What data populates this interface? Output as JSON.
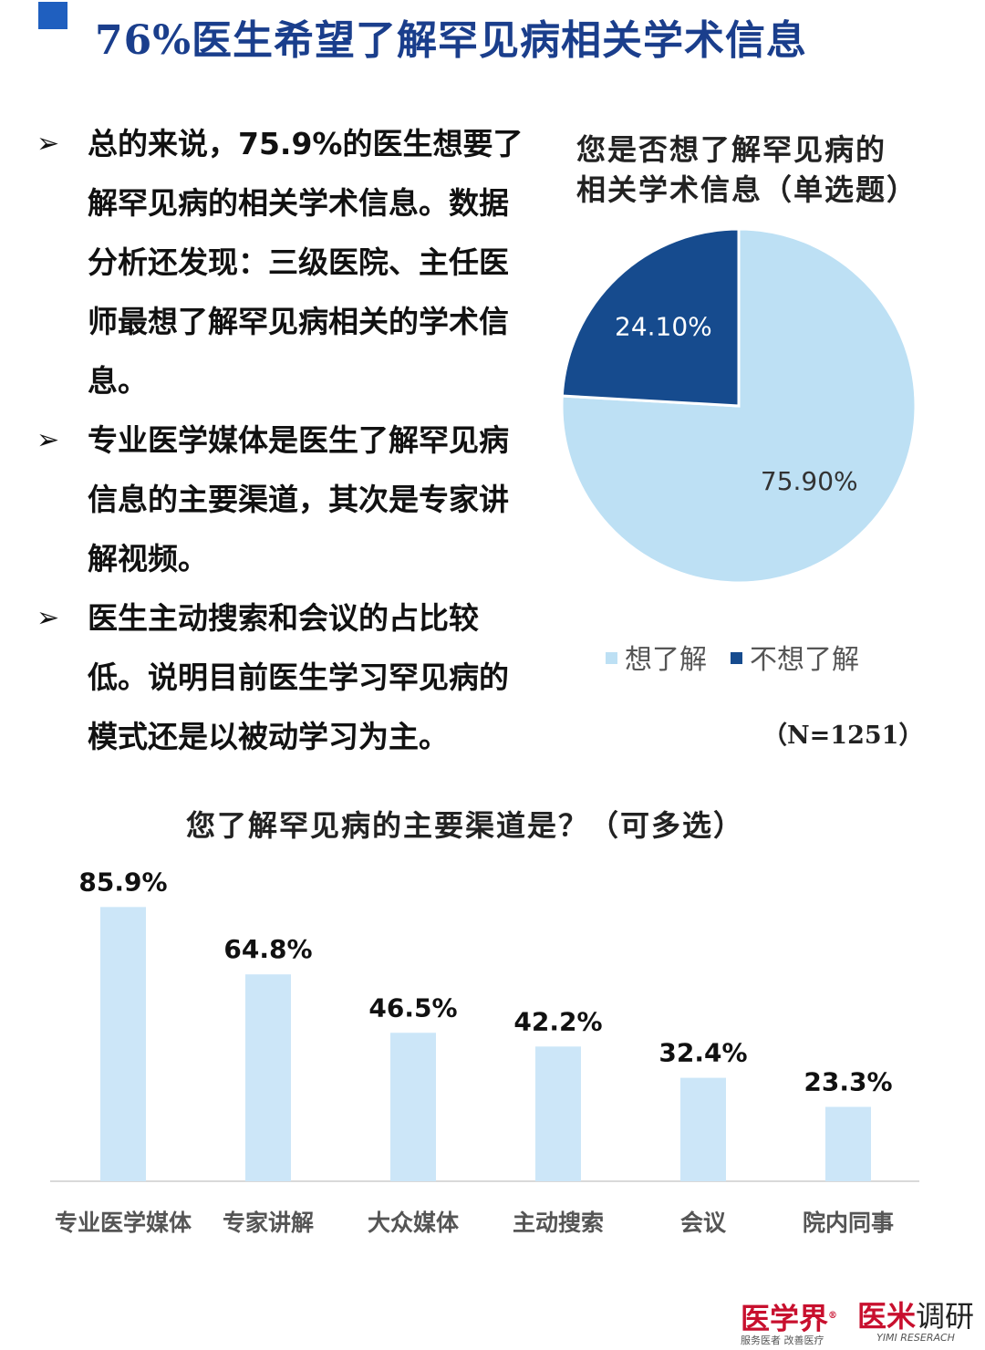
{
  "page_title": "76%医生希望了解罕见病相关学术信息",
  "bullets": [
    {
      "arrow": "➢",
      "text": "总的来说，75.9%的医生想要了解罕见病的相关学术信息。数据分析还发现：三级医院、主任医师最想了解罕见病相关的学术信息。"
    },
    {
      "arrow": "➢",
      "text": "专业医学媒体是医生了解罕见病信息的主要渠道，其次是专家讲解视频。"
    },
    {
      "arrow": "➢",
      "text": "医生主动搜索和会议的占比较低。说明目前医生学习罕见病的模式还是以被动学习为主。"
    }
  ],
  "chart_data": [
    {
      "type": "pie",
      "title_line1": "您是否想了解罕见病的",
      "title_line2": "相关学术信息（单选题）",
      "slices": [
        {
          "label": "想了解",
          "value": 75.9,
          "display": "75.90%",
          "color": "#bde0f4"
        },
        {
          "label": "不想了解",
          "value": 24.1,
          "display": "24.10%",
          "color": "#164b8e"
        }
      ],
      "legend_placement": "bottom",
      "note": "（N=1251）"
    },
    {
      "type": "bar",
      "title": "您了解罕见病的主要渠道是？（可多选）",
      "categories": [
        "专业医学媒体",
        "专家讲解",
        "大众媒体",
        "主动搜索",
        "会议",
        "院内同事"
      ],
      "values": [
        85.9,
        64.8,
        46.5,
        42.2,
        32.4,
        23.3
      ],
      "labels": [
        "85.9%",
        "64.8%",
        "46.5%",
        "42.2%",
        "32.4%",
        "23.3%"
      ],
      "ylim": [
        0,
        100
      ],
      "bar_color": "#cce6f8",
      "axis_color": "#d9d9d9",
      "grid": false
    }
  ],
  "logos": {
    "logo1_name": "医学界",
    "logo1_mark": "®",
    "logo1_tagline": "服务医者 改善医疗",
    "logo2_name_a": "医米",
    "logo2_name_b": "调研",
    "logo2_tagline": "YIMI RESERACH"
  },
  "colors": {
    "title_square": "#1f5fbf",
    "title_text": "#1a3e8c"
  }
}
